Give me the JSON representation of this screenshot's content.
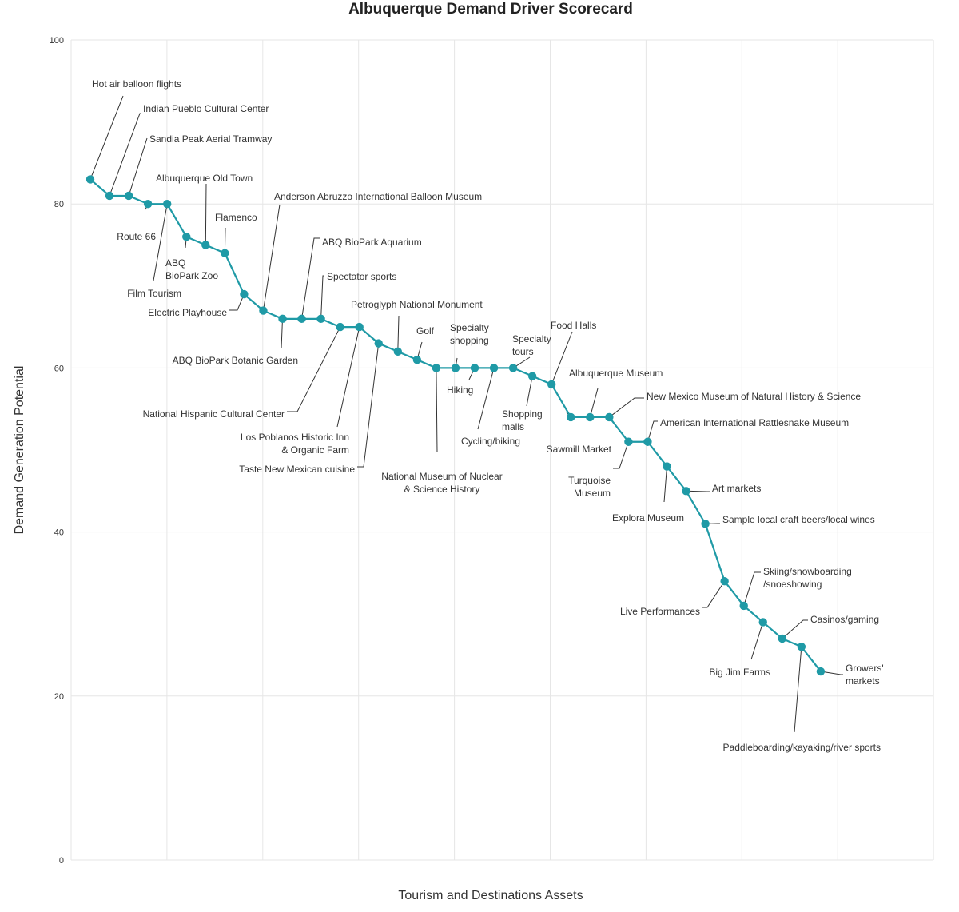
{
  "chart_data": {
    "type": "line",
    "title": "Albuquerque Demand Driver Scorecard",
    "xlabel": "Tourism and Destinations Assets",
    "ylabel": "Demand Generation Potential",
    "ylim": [
      0,
      100
    ],
    "yticks": [
      "0",
      "20",
      "40",
      "60",
      "80",
      "100"
    ],
    "grid": true,
    "color": "#1f9aa6",
    "points": [
      {
        "label": [
          "Hot air balloon flights"
        ],
        "value": 83
      },
      {
        "label": [
          "Indian Pueblo Cultural Center"
        ],
        "value": 81
      },
      {
        "label": [
          "Sandia Peak Aerial Tramway"
        ],
        "value": 81
      },
      {
        "label": [
          "Route 66"
        ],
        "value": 80
      },
      {
        "label": [
          "Film Tourism"
        ],
        "value": 80
      },
      {
        "label": [
          "ABQ",
          "BioPark Zoo"
        ],
        "value": 76
      },
      {
        "label": [
          "Albuquerque Old Town"
        ],
        "value": 75
      },
      {
        "label": [
          "Flamenco"
        ],
        "value": 74
      },
      {
        "label": [
          "Electric Playhouse"
        ],
        "value": 69
      },
      {
        "label": [
          "Anderson Abruzzo International Balloon Museum"
        ],
        "value": 67
      },
      {
        "label": [
          "ABQ BioPark Botanic Garden"
        ],
        "value": 66
      },
      {
        "label": [
          "ABQ BioPark Aquarium"
        ],
        "value": 66
      },
      {
        "label": [
          "Spectator sports"
        ],
        "value": 66
      },
      {
        "label": [
          "National Hispanic Cultural Center"
        ],
        "value": 65
      },
      {
        "label": [
          "Los Poblanos Historic Inn",
          "& Organic Farm"
        ],
        "value": 65
      },
      {
        "label": [
          "Taste New Mexican cuisine"
        ],
        "value": 63
      },
      {
        "label": [
          "Petroglyph National Monument"
        ],
        "value": 62
      },
      {
        "label": [
          "Golf"
        ],
        "value": 61
      },
      {
        "label": [
          "National Museum of Nuclear",
          "& Science History"
        ],
        "value": 60
      },
      {
        "label": [
          "Specialty",
          "shopping"
        ],
        "value": 60
      },
      {
        "label": [
          "Hiking"
        ],
        "value": 60
      },
      {
        "label": [
          "Cycling/biking"
        ],
        "value": 60
      },
      {
        "label": [
          "Specialty",
          "tours"
        ],
        "value": 60
      },
      {
        "label": [
          "Shopping",
          "malls"
        ],
        "value": 59
      },
      {
        "label": [
          "Food Halls"
        ],
        "value": 58
      },
      {
        "label": [
          "Sawmill Market"
        ],
        "value": 54
      },
      {
        "label": [
          "Albuquerque Museum"
        ],
        "value": 54
      },
      {
        "label": [
          "New Mexico Museum of Natural History & Science"
        ],
        "value": 54
      },
      {
        "label": [
          "Turquoise",
          "Museum"
        ],
        "value": 51
      },
      {
        "label": [
          "American International Rattlesnake Museum"
        ],
        "value": 51
      },
      {
        "label": [
          "Explora Museum"
        ],
        "value": 48
      },
      {
        "label": [
          "Art markets"
        ],
        "value": 45
      },
      {
        "label": [
          "Sample local craft beers/local wines"
        ],
        "value": 41
      },
      {
        "label": [
          "Live Performances"
        ],
        "value": 34
      },
      {
        "label": [
          "Skiing/snowboarding",
          "/snoeshowing"
        ],
        "value": 31
      },
      {
        "label": [
          "Big Jim Farms"
        ],
        "value": 29
      },
      {
        "label": [
          "Casinos/gaming"
        ],
        "value": 27
      },
      {
        "label": [
          "Paddleboarding/kayaking/river sports"
        ],
        "value": 26
      },
      {
        "label": [
          "Growers'",
          "markets"
        ],
        "value": 23
      }
    ]
  }
}
